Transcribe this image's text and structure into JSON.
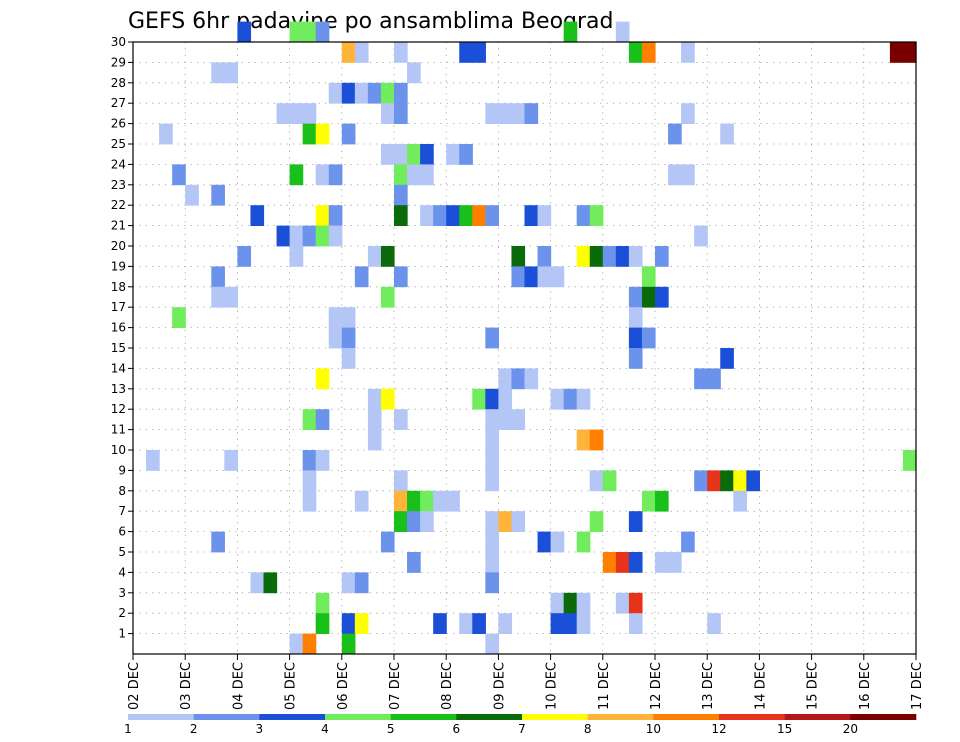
{
  "chart_data": {
    "type": "heatmap",
    "title": "GEFS 6hr padavine po ansamblima Beograd",
    "xlabel": "",
    "ylabel": "",
    "grid": true,
    "y_ticks": [
      "1",
      "2",
      "3",
      "4",
      "5",
      "6",
      "7",
      "8",
      "9",
      "10",
      "11",
      "12",
      "13",
      "14",
      "15",
      "16",
      "17",
      "18",
      "19",
      "20",
      "21",
      "22",
      "23",
      "24",
      "25",
      "26",
      "27",
      "28",
      "29",
      "30"
    ],
    "x_ticks": [
      "02 DEC",
      "03 DEC",
      "04 DEC",
      "05 DEC",
      "06 DEC",
      "07 DEC",
      "08 DEC",
      "09 DEC",
      "10 DEC",
      "11 DEC",
      "12 DEC",
      "13 DEC",
      "14 DEC",
      "15 DEC",
      "16 DEC",
      "17 DEC"
    ],
    "xlim": [
      0,
      60
    ],
    "ylim": [
      0,
      30
    ],
    "legend": {
      "placement": "bottom",
      "levels": [
        "1",
        "2",
        "3",
        "4",
        "5",
        "6",
        "7",
        "8",
        "10",
        "12",
        "15",
        "20"
      ],
      "colors": [
        "#b3c6f5",
        "#6b93ec",
        "#1c4fd7",
        "#70ec5c",
        "#19c019",
        "#0b6b0b",
        "#ffff00",
        "#ffb439",
        "#ff7f00",
        "#e8331b",
        "#b31717",
        "#7a0000"
      ]
    },
    "cells": [
      {
        "member": 30,
        "step": 9,
        "value": 3
      },
      {
        "member": 30,
        "step": 13,
        "value": 4
      },
      {
        "member": 30,
        "step": 14,
        "value": 4
      },
      {
        "member": 30,
        "step": 15,
        "value": 2
      },
      {
        "member": 30,
        "step": 34,
        "value": 5
      },
      {
        "member": 30,
        "step": 38,
        "value": 1
      },
      {
        "member": 29,
        "step": 17,
        "value": 9
      },
      {
        "member": 29,
        "step": 18,
        "value": 1
      },
      {
        "member": 29,
        "step": 21,
        "value": 1
      },
      {
        "member": 29,
        "step": 26,
        "value": 3
      },
      {
        "member": 29,
        "step": 27,
        "value": 3
      },
      {
        "member": 29,
        "step": 39,
        "value": 5
      },
      {
        "member": 29,
        "step": 40,
        "value": 10
      },
      {
        "member": 29,
        "step": 43,
        "value": 1
      },
      {
        "member": 29,
        "step": 59,
        "value": 20
      },
      {
        "member": 29,
        "step": 60,
        "value": 20
      },
      {
        "member": 28,
        "step": 7,
        "value": 1
      },
      {
        "member": 28,
        "step": 8,
        "value": 1
      },
      {
        "member": 28,
        "step": 22,
        "value": 1
      },
      {
        "member": 27,
        "step": 16,
        "value": 1
      },
      {
        "member": 27,
        "step": 17,
        "value": 3
      },
      {
        "member": 27,
        "step": 18,
        "value": 1
      },
      {
        "member": 27,
        "step": 19,
        "value": 2
      },
      {
        "member": 27,
        "step": 20,
        "value": 4
      },
      {
        "member": 27,
        "step": 21,
        "value": 2
      },
      {
        "member": 26,
        "step": 12,
        "value": 1
      },
      {
        "member": 26,
        "step": 13,
        "value": 1
      },
      {
        "member": 26,
        "step": 14,
        "value": 1
      },
      {
        "member": 26,
        "step": 20,
        "value": 1
      },
      {
        "member": 26,
        "step": 21,
        "value": 2
      },
      {
        "member": 26,
        "step": 28,
        "value": 1
      },
      {
        "member": 26,
        "step": 29,
        "value": 1
      },
      {
        "member": 26,
        "step": 30,
        "value": 1
      },
      {
        "member": 26,
        "step": 31,
        "value": 2
      },
      {
        "member": 26,
        "step": 43,
        "value": 1
      },
      {
        "member": 25,
        "step": 3,
        "value": 1
      },
      {
        "member": 25,
        "step": 14,
        "value": 5
      },
      {
        "member": 25,
        "step": 15,
        "value": 7
      },
      {
        "member": 25,
        "step": 17,
        "value": 2
      },
      {
        "member": 25,
        "step": 42,
        "value": 2
      },
      {
        "member": 25,
        "step": 46,
        "value": 1
      },
      {
        "member": 24,
        "step": 20,
        "value": 1
      },
      {
        "member": 24,
        "step": 21,
        "value": 1
      },
      {
        "member": 24,
        "step": 22,
        "value": 4
      },
      {
        "member": 24,
        "step": 23,
        "value": 3
      },
      {
        "member": 24,
        "step": 25,
        "value": 1
      },
      {
        "member": 24,
        "step": 26,
        "value": 2
      },
      {
        "member": 23,
        "step": 4,
        "value": 2
      },
      {
        "member": 23,
        "step": 13,
        "value": 5
      },
      {
        "member": 23,
        "step": 15,
        "value": 1
      },
      {
        "member": 23,
        "step": 16,
        "value": 2
      },
      {
        "member": 23,
        "step": 21,
        "value": 4
      },
      {
        "member": 23,
        "step": 22,
        "value": 1
      },
      {
        "member": 23,
        "step": 23,
        "value": 1
      },
      {
        "member": 23,
        "step": 42,
        "value": 1
      },
      {
        "member": 23,
        "step": 43,
        "value": 1
      },
      {
        "member": 22,
        "step": 5,
        "value": 1
      },
      {
        "member": 22,
        "step": 7,
        "value": 2
      },
      {
        "member": 22,
        "step": 21,
        "value": 2
      },
      {
        "member": 21,
        "step": 10,
        "value": 3
      },
      {
        "member": 21,
        "step": 15,
        "value": 7
      },
      {
        "member": 21,
        "step": 16,
        "value": 2
      },
      {
        "member": 21,
        "step": 21,
        "value": 6
      },
      {
        "member": 21,
        "step": 23,
        "value": 1
      },
      {
        "member": 21,
        "step": 24,
        "value": 2
      },
      {
        "member": 21,
        "step": 25,
        "value": 3
      },
      {
        "member": 21,
        "step": 26,
        "value": 5
      },
      {
        "member": 21,
        "step": 27,
        "value": 10
      },
      {
        "member": 21,
        "step": 28,
        "value": 2
      },
      {
        "member": 21,
        "step": 31,
        "value": 3
      },
      {
        "member": 21,
        "step": 32,
        "value": 1
      },
      {
        "member": 21,
        "step": 35,
        "value": 2
      },
      {
        "member": 21,
        "step": 36,
        "value": 4
      },
      {
        "member": 20,
        "step": 12,
        "value": 3
      },
      {
        "member": 20,
        "step": 13,
        "value": 1
      },
      {
        "member": 20,
        "step": 14,
        "value": 2
      },
      {
        "member": 20,
        "step": 15,
        "value": 4
      },
      {
        "member": 20,
        "step": 16,
        "value": 1
      },
      {
        "member": 20,
        "step": 44,
        "value": 1
      },
      {
        "member": 19,
        "step": 9,
        "value": 2
      },
      {
        "member": 19,
        "step": 13,
        "value": 1
      },
      {
        "member": 19,
        "step": 19,
        "value": 1
      },
      {
        "member": 19,
        "step": 20,
        "value": 6
      },
      {
        "member": 19,
        "step": 30,
        "value": 6
      },
      {
        "member": 19,
        "step": 32,
        "value": 2
      },
      {
        "member": 19,
        "step": 35,
        "value": 7
      },
      {
        "member": 19,
        "step": 36,
        "value": 6
      },
      {
        "member": 19,
        "step": 37,
        "value": 2
      },
      {
        "member": 19,
        "step": 38,
        "value": 3
      },
      {
        "member": 19,
        "step": 39,
        "value": 1
      },
      {
        "member": 19,
        "step": 41,
        "value": 2
      },
      {
        "member": 18,
        "step": 7,
        "value": 2
      },
      {
        "member": 18,
        "step": 18,
        "value": 2
      },
      {
        "member": 18,
        "step": 21,
        "value": 2
      },
      {
        "member": 18,
        "step": 30,
        "value": 2
      },
      {
        "member": 18,
        "step": 31,
        "value": 3
      },
      {
        "member": 18,
        "step": 32,
        "value": 1
      },
      {
        "member": 18,
        "step": 33,
        "value": 1
      },
      {
        "member": 18,
        "step": 40,
        "value": 4
      },
      {
        "member": 17,
        "step": 7,
        "value": 1
      },
      {
        "member": 17,
        "step": 8,
        "value": 1
      },
      {
        "member": 17,
        "step": 20,
        "value": 4
      },
      {
        "member": 17,
        "step": 39,
        "value": 2
      },
      {
        "member": 17,
        "step": 40,
        "value": 6
      },
      {
        "member": 17,
        "step": 41,
        "value": 3
      },
      {
        "member": 16,
        "step": 4,
        "value": 4
      },
      {
        "member": 16,
        "step": 16,
        "value": 1
      },
      {
        "member": 16,
        "step": 17,
        "value": 1
      },
      {
        "member": 16,
        "step": 39,
        "value": 1
      },
      {
        "member": 15,
        "step": 16,
        "value": 1
      },
      {
        "member": 15,
        "step": 17,
        "value": 2
      },
      {
        "member": 15,
        "step": 28,
        "value": 2
      },
      {
        "member": 15,
        "step": 39,
        "value": 3
      },
      {
        "member": 15,
        "step": 40,
        "value": 2
      },
      {
        "member": 14,
        "step": 17,
        "value": 1
      },
      {
        "member": 14,
        "step": 39,
        "value": 2
      },
      {
        "member": 14,
        "step": 46,
        "value": 3
      },
      {
        "member": 13,
        "step": 15,
        "value": 7
      },
      {
        "member": 13,
        "step": 29,
        "value": 1
      },
      {
        "member": 13,
        "step": 30,
        "value": 2
      },
      {
        "member": 13,
        "step": 31,
        "value": 1
      },
      {
        "member": 13,
        "step": 44,
        "value": 2
      },
      {
        "member": 13,
        "step": 45,
        "value": 2
      },
      {
        "member": 12,
        "step": 19,
        "value": 1
      },
      {
        "member": 12,
        "step": 20,
        "value": 7
      },
      {
        "member": 12,
        "step": 27,
        "value": 4
      },
      {
        "member": 12,
        "step": 28,
        "value": 3
      },
      {
        "member": 12,
        "step": 29,
        "value": 1
      },
      {
        "member": 12,
        "step": 33,
        "value": 1
      },
      {
        "member": 12,
        "step": 34,
        "value": 2
      },
      {
        "member": 12,
        "step": 35,
        "value": 1
      },
      {
        "member": 11,
        "step": 14,
        "value": 4
      },
      {
        "member": 11,
        "step": 15,
        "value": 2
      },
      {
        "member": 11,
        "step": 19,
        "value": 1
      },
      {
        "member": 11,
        "step": 21,
        "value": 1
      },
      {
        "member": 11,
        "step": 28,
        "value": 1
      },
      {
        "member": 11,
        "step": 29,
        "value": 1
      },
      {
        "member": 11,
        "step": 30,
        "value": 1
      },
      {
        "member": 10,
        "step": 19,
        "value": 1
      },
      {
        "member": 10,
        "step": 28,
        "value": 1
      },
      {
        "member": 10,
        "step": 35,
        "value": 8
      },
      {
        "member": 10,
        "step": 36,
        "value": 10
      },
      {
        "member": 9,
        "step": 2,
        "value": 1
      },
      {
        "member": 9,
        "step": 8,
        "value": 1
      },
      {
        "member": 9,
        "step": 14,
        "value": 2
      },
      {
        "member": 9,
        "step": 15,
        "value": 1
      },
      {
        "member": 9,
        "step": 28,
        "value": 1
      },
      {
        "member": 9,
        "step": 60,
        "value": 4
      },
      {
        "member": 8,
        "step": 14,
        "value": 1
      },
      {
        "member": 8,
        "step": 21,
        "value": 1
      },
      {
        "member": 8,
        "step": 28,
        "value": 1
      },
      {
        "member": 8,
        "step": 36,
        "value": 1
      },
      {
        "member": 8,
        "step": 37,
        "value": 4
      },
      {
        "member": 8,
        "step": 44,
        "value": 2
      },
      {
        "member": 8,
        "step": 45,
        "value": 12
      },
      {
        "member": 8,
        "step": 46,
        "value": 6
      },
      {
        "member": 8,
        "step": 47,
        "value": 7
      },
      {
        "member": 8,
        "step": 48,
        "value": 3
      },
      {
        "member": 7,
        "step": 14,
        "value": 1
      },
      {
        "member": 7,
        "step": 18,
        "value": 1
      },
      {
        "member": 7,
        "step": 21,
        "value": 9
      },
      {
        "member": 7,
        "step": 22,
        "value": 5
      },
      {
        "member": 7,
        "step": 23,
        "value": 4
      },
      {
        "member": 7,
        "step": 24,
        "value": 1
      },
      {
        "member": 7,
        "step": 25,
        "value": 1
      },
      {
        "member": 7,
        "step": 40,
        "value": 4
      },
      {
        "member": 7,
        "step": 41,
        "value": 5
      },
      {
        "member": 7,
        "step": 47,
        "value": 1
      },
      {
        "member": 6,
        "step": 21,
        "value": 5
      },
      {
        "member": 6,
        "step": 22,
        "value": 2
      },
      {
        "member": 6,
        "step": 23,
        "value": 1
      },
      {
        "member": 6,
        "step": 28,
        "value": 1
      },
      {
        "member": 6,
        "step": 29,
        "value": 9
      },
      {
        "member": 6,
        "step": 30,
        "value": 1
      },
      {
        "member": 6,
        "step": 36,
        "value": 4
      },
      {
        "member": 6,
        "step": 39,
        "value": 3
      },
      {
        "member": 5,
        "step": 7,
        "value": 2
      },
      {
        "member": 5,
        "step": 20,
        "value": 2
      },
      {
        "member": 5,
        "step": 28,
        "value": 1
      },
      {
        "member": 5,
        "step": 32,
        "value": 3
      },
      {
        "member": 5,
        "step": 33,
        "value": 1
      },
      {
        "member": 5,
        "step": 35,
        "value": 4
      },
      {
        "member": 5,
        "step": 43,
        "value": 2
      },
      {
        "member": 4,
        "step": 22,
        "value": 2
      },
      {
        "member": 4,
        "step": 28,
        "value": 1
      },
      {
        "member": 4,
        "step": 37,
        "value": 10
      },
      {
        "member": 4,
        "step": 38,
        "value": 12
      },
      {
        "member": 4,
        "step": 39,
        "value": 3
      },
      {
        "member": 4,
        "step": 41,
        "value": 1
      },
      {
        "member": 4,
        "step": 42,
        "value": 1
      },
      {
        "member": 3,
        "step": 10,
        "value": 1
      },
      {
        "member": 3,
        "step": 11,
        "value": 6
      },
      {
        "member": 3,
        "step": 17,
        "value": 1
      },
      {
        "member": 3,
        "step": 18,
        "value": 2
      },
      {
        "member": 3,
        "step": 28,
        "value": 2
      },
      {
        "member": 2,
        "step": 15,
        "value": 4
      },
      {
        "member": 2,
        "step": 33,
        "value": 1
      },
      {
        "member": 2,
        "step": 34,
        "value": 6
      },
      {
        "member": 2,
        "step": 35,
        "value": 1
      },
      {
        "member": 2,
        "step": 38,
        "value": 1
      },
      {
        "member": 2,
        "step": 39,
        "value": 12
      },
      {
        "member": 1,
        "step": 15,
        "value": 5
      },
      {
        "member": 1,
        "step": 17,
        "value": 3
      },
      {
        "member": 1,
        "step": 18,
        "value": 7
      },
      {
        "member": 1,
        "step": 24,
        "value": 3
      },
      {
        "member": 1,
        "step": 26,
        "value": 1
      },
      {
        "member": 1,
        "step": 27,
        "value": 3
      },
      {
        "member": 1,
        "step": 29,
        "value": 1
      },
      {
        "member": 1,
        "step": 33,
        "value": 3
      },
      {
        "member": 1,
        "step": 34,
        "value": 3
      },
      {
        "member": 1,
        "step": 35,
        "value": 1
      },
      {
        "member": 1,
        "step": 39,
        "value": 1
      },
      {
        "member": 1,
        "step": 45,
        "value": 1
      },
      {
        "member": 0,
        "step": 13,
        "value": 1
      },
      {
        "member": 0,
        "step": 14,
        "value": 10
      },
      {
        "member": 0,
        "step": 17,
        "value": 5
      },
      {
        "member": 0,
        "step": 28,
        "value": 1
      }
    ]
  }
}
